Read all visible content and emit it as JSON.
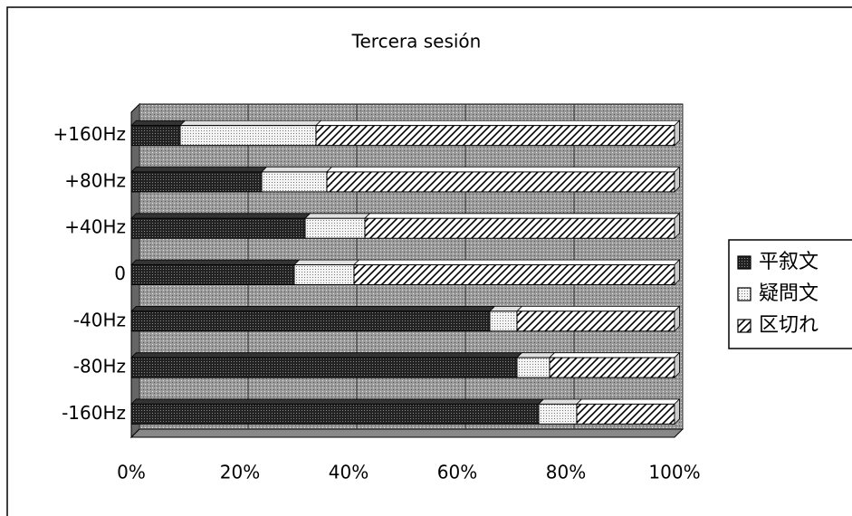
{
  "chart_data": {
    "type": "bar_stacked_horizontal",
    "title": "Tercera sesión",
    "categories": [
      "+160Hz",
      "+80Hz",
      "+40Hz",
      "0",
      "-40Hz",
      "-80Hz",
      "-160Hz"
    ],
    "series": [
      {
        "name": "平叙文",
        "color": "#333333",
        "pattern": "dots-dark",
        "values": [
          9,
          24,
          32,
          30,
          66,
          71,
          75
        ]
      },
      {
        "name": "疑問文",
        "color": "#e0e0e0",
        "pattern": "dots-light",
        "values": [
          25,
          12,
          11,
          11,
          5,
          6,
          7
        ]
      },
      {
        "name": "区切れ",
        "color": "#ffffff",
        "pattern": "hatch",
        "values": [
          66,
          64,
          57,
          59,
          29,
          23,
          18
        ]
      }
    ],
    "xlim": [
      0,
      100
    ],
    "xticks": [
      {
        "value": 0,
        "label": "0%"
      },
      {
        "value": 20,
        "label": "20%"
      },
      {
        "value": 40,
        "label": "40%"
      },
      {
        "value": 60,
        "label": "60%"
      },
      {
        "value": 80,
        "label": "80%"
      },
      {
        "value": 100,
        "label": "100%"
      }
    ],
    "grid": true,
    "legend": "right"
  }
}
